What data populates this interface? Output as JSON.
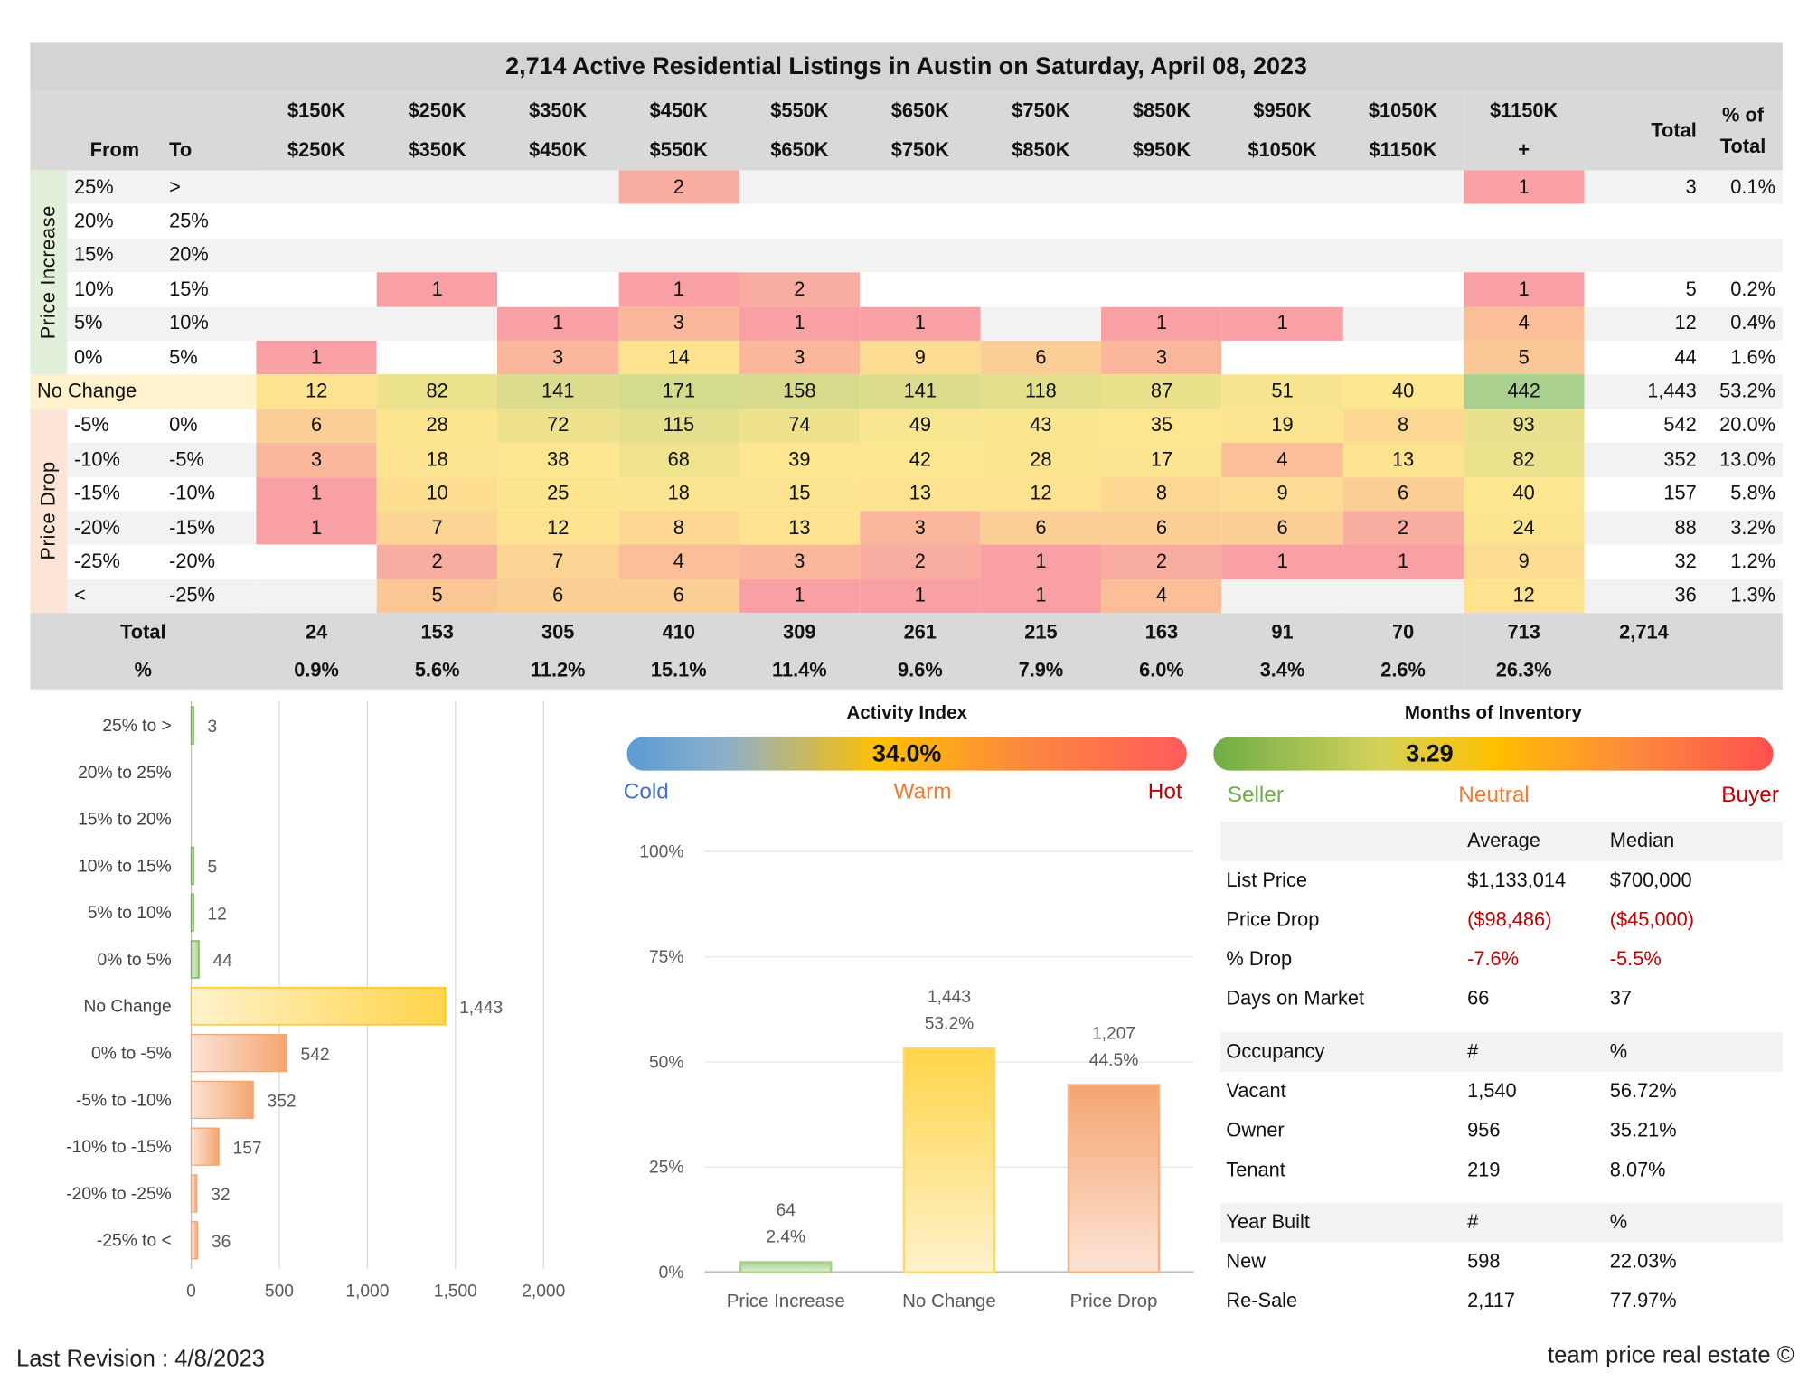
{
  "title": "2,714 Active Residential Listings in Austin on Saturday, April 08, 2023",
  "heatmap": {
    "header_from": "From",
    "header_to": "To",
    "price_from": [
      "$150K",
      "$250K",
      "$350K",
      "$450K",
      "$550K",
      "$650K",
      "$750K",
      "$850K",
      "$950K",
      "$1050K",
      "$1150K"
    ],
    "price_to": [
      "$250K",
      "$350K",
      "$450K",
      "$550K",
      "$650K",
      "$750K",
      "$850K",
      "$950K",
      "$1050K",
      "$1150K",
      "+"
    ],
    "total_header": "Total",
    "pct_header": "% of Total",
    "group_increase": "Price Increase",
    "group_drop": "Price Drop",
    "no_change_label": "No Change",
    "rows": [
      {
        "from": "25%",
        "to": ">",
        "values": [
          null,
          null,
          null,
          2,
          null,
          null,
          null,
          null,
          null,
          null,
          1
        ],
        "total": "3",
        "pct": "0.1%"
      },
      {
        "from": "20%",
        "to": "25%",
        "values": [
          null,
          null,
          null,
          null,
          null,
          null,
          null,
          null,
          null,
          null,
          null
        ],
        "total": "",
        "pct": ""
      },
      {
        "from": "15%",
        "to": "20%",
        "values": [
          null,
          null,
          null,
          null,
          null,
          null,
          null,
          null,
          null,
          null,
          null
        ],
        "total": "",
        "pct": ""
      },
      {
        "from": "10%",
        "to": "15%",
        "values": [
          null,
          1,
          null,
          1,
          2,
          null,
          null,
          null,
          null,
          null,
          1
        ],
        "total": "5",
        "pct": "0.2%"
      },
      {
        "from": "5%",
        "to": "10%",
        "values": [
          null,
          null,
          1,
          3,
          1,
          1,
          null,
          1,
          1,
          null,
          4
        ],
        "total": "12",
        "pct": "0.4%"
      },
      {
        "from": "0%",
        "to": "5%",
        "values": [
          1,
          null,
          3,
          14,
          3,
          9,
          6,
          3,
          null,
          null,
          5
        ],
        "total": "44",
        "pct": "1.6%"
      },
      {
        "from": "No Change",
        "to": "",
        "values": [
          12,
          82,
          141,
          171,
          158,
          141,
          118,
          87,
          51,
          40,
          442
        ],
        "total": "1,443",
        "pct": "53.2%"
      },
      {
        "from": "-5%",
        "to": "0%",
        "values": [
          6,
          28,
          72,
          115,
          74,
          49,
          43,
          35,
          19,
          8,
          93
        ],
        "total": "542",
        "pct": "20.0%"
      },
      {
        "from": "-10%",
        "to": "-5%",
        "values": [
          3,
          18,
          38,
          68,
          39,
          42,
          28,
          17,
          4,
          13,
          82
        ],
        "total": "352",
        "pct": "13.0%"
      },
      {
        "from": "-15%",
        "to": "-10%",
        "values": [
          1,
          10,
          25,
          18,
          15,
          13,
          12,
          8,
          9,
          6,
          40
        ],
        "total": "157",
        "pct": "5.8%"
      },
      {
        "from": "-20%",
        "to": "-15%",
        "values": [
          1,
          7,
          12,
          8,
          13,
          3,
          6,
          6,
          6,
          2,
          24
        ],
        "total": "88",
        "pct": "3.2%"
      },
      {
        "from": "-25%",
        "to": "-20%",
        "values": [
          null,
          2,
          7,
          4,
          3,
          2,
          1,
          2,
          1,
          1,
          9
        ],
        "total": "32",
        "pct": "1.2%"
      },
      {
        "from": "<",
        "to": "-25%",
        "values": [
          null,
          5,
          6,
          6,
          1,
          1,
          1,
          4,
          null,
          null,
          12
        ],
        "total": "36",
        "pct": "1.3%"
      }
    ],
    "total_label": "Total",
    "pct_label": "%",
    "col_totals": [
      "24",
      "153",
      "305",
      "410",
      "309",
      "261",
      "215",
      "163",
      "91",
      "70",
      "713"
    ],
    "grand_total": "2,714",
    "col_pcts": [
      "0.9%",
      "5.6%",
      "11.2%",
      "15.1%",
      "11.4%",
      "9.6%",
      "7.9%",
      "6.0%",
      "3.4%",
      "2.6%",
      "26.3%"
    ],
    "colors": {
      "low": "#f8a0a3",
      "mid": "#fde390",
      "high": "#a9d08e",
      "increase_bg": "#e2efda",
      "drop_bg": "#fce4d6",
      "nochange_bg": "#fff2cc"
    }
  },
  "chart_data": [
    {
      "type": "bar",
      "orientation": "horizontal",
      "categories": [
        "25% to >",
        "20% to 25%",
        "15% to 20%",
        "10% to 15%",
        "5% to 10%",
        "0% to 5%",
        "No Change",
        "0% to -5%",
        "-5% to -10%",
        "-10% to -15%",
        "-20% to -25%",
        "-25% to <"
      ],
      "values": [
        3,
        null,
        null,
        5,
        12,
        44,
        1443,
        542,
        352,
        157,
        32,
        36
      ],
      "value_labels": [
        "3",
        "",
        "",
        "5",
        "12",
        "44",
        "1,443",
        "542",
        "352",
        "157",
        "32",
        "36"
      ],
      "xlim": [
        0,
        2000
      ],
      "xticks": [
        "0",
        "500",
        "1,000",
        "1,500",
        "2,000"
      ],
      "grid": true
    },
    {
      "type": "bar",
      "title": "",
      "categories": [
        "Price Increase",
        "No Change",
        "Price Drop"
      ],
      "values": [
        2.4,
        53.2,
        44.5
      ],
      "counts": [
        "64",
        "1,443",
        "1,207"
      ],
      "pct_labels": [
        "2.4%",
        "53.2%",
        "44.5%"
      ],
      "ylim": [
        0,
        100
      ],
      "yticks": [
        "0%",
        "25%",
        "50%",
        "75%",
        "100%"
      ],
      "colors": [
        "#a9d18e",
        "#ffd966",
        "#f4b183"
      ]
    }
  ],
  "activity_index": {
    "title": "Activity Index",
    "value": "34.0%",
    "level": 0.34,
    "labels": [
      "Cold",
      "Warm",
      "Hot"
    ],
    "label_colors": [
      "#4472c4",
      "#ed7d31",
      "#c00000"
    ]
  },
  "months_inventory": {
    "title": "Months of Inventory",
    "value": "3.29",
    "labels": [
      "Seller",
      "Neutral",
      "Buyer"
    ],
    "label_colors": [
      "#70ad47",
      "#ed7d31",
      "#c00000"
    ]
  },
  "stats": {
    "price_header": [
      "",
      "Average",
      "Median"
    ],
    "price_rows": [
      [
        "List Price",
        "$1,133,014",
        "$700,000"
      ],
      [
        "Price Drop",
        "($98,486)",
        "($45,000)"
      ],
      [
        "% Drop",
        "-7.6%",
        "-5.5%"
      ],
      [
        "Days on Market",
        "66",
        "37"
      ]
    ],
    "occupancy_header": [
      "Occupancy",
      "#",
      "%"
    ],
    "occupancy_rows": [
      [
        "Vacant",
        "1,540",
        "56.72%"
      ],
      [
        "Owner",
        "956",
        "35.21%"
      ],
      [
        "Tenant",
        "219",
        "8.07%"
      ]
    ],
    "year_header": [
      "Year Built",
      "#",
      "%"
    ],
    "year_rows": [
      [
        "New",
        "598",
        "22.03%"
      ],
      [
        "Re-Sale",
        "2,117",
        "77.97%"
      ]
    ],
    "negative_color": "#c00000"
  },
  "footer": {
    "revision": "Last Revision : 4/8/2023",
    "brand": "team price real estate ©"
  }
}
